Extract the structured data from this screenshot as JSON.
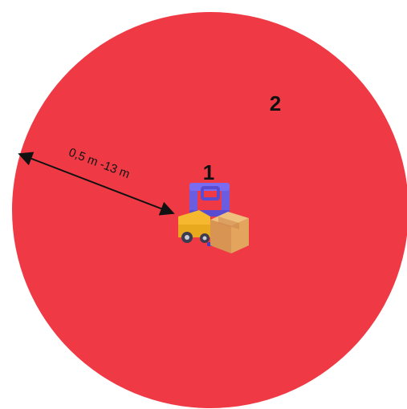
{
  "zones": {
    "outer": {
      "label": "2",
      "color": "#ef3a45"
    },
    "inner": {
      "label": "1"
    }
  },
  "distance": {
    "label": "0,5 m -13 m"
  },
  "icons": [
    "forklift-icon",
    "cardboard-box-icon",
    "double-arrow-icon"
  ],
  "colors": {
    "forklift_body": "#f5b82e",
    "forklift_mast": "#6b5ce0",
    "box": "#e3a55e",
    "text": "#111111"
  }
}
